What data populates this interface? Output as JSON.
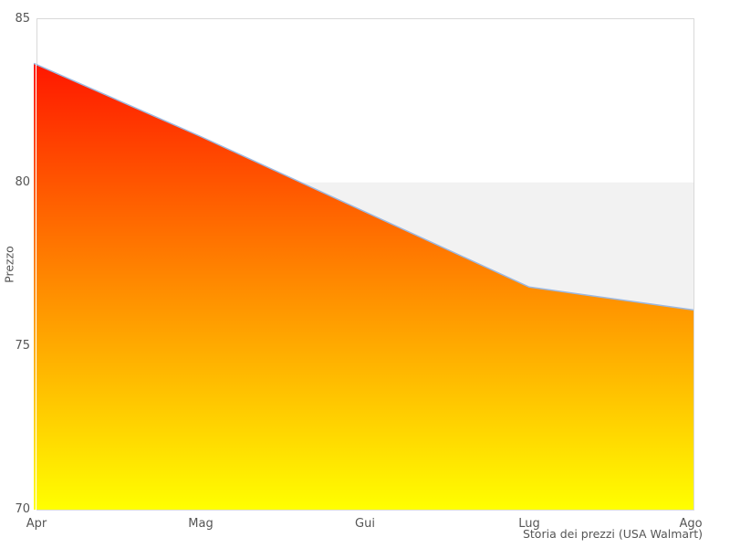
{
  "chart_data": {
    "type": "area",
    "title": "Storia dei prezzi (USA Walmart)",
    "ylabel": "Prezzo",
    "xlabel": "",
    "categories": [
      "Apr",
      "Mag",
      "Gui",
      "Lug",
      "Ago"
    ],
    "values": [
      83.6,
      81.4,
      79.1,
      76.8,
      76.1
    ],
    "ylim": [
      70,
      85
    ],
    "yticks": [
      70,
      75,
      80,
      85
    ],
    "plot_band": {
      "from": 80,
      "to": 70,
      "color": "#f2f2f2"
    },
    "colors": {
      "area_gradient_top": "#ff0000",
      "area_gradient_bottom": "#ffff00",
      "line": "#9cb8e0",
      "plot_border": "#d9d9d9",
      "text": "#555555",
      "background": "#ffffff"
    },
    "legend_position": "none",
    "grid": "off"
  }
}
